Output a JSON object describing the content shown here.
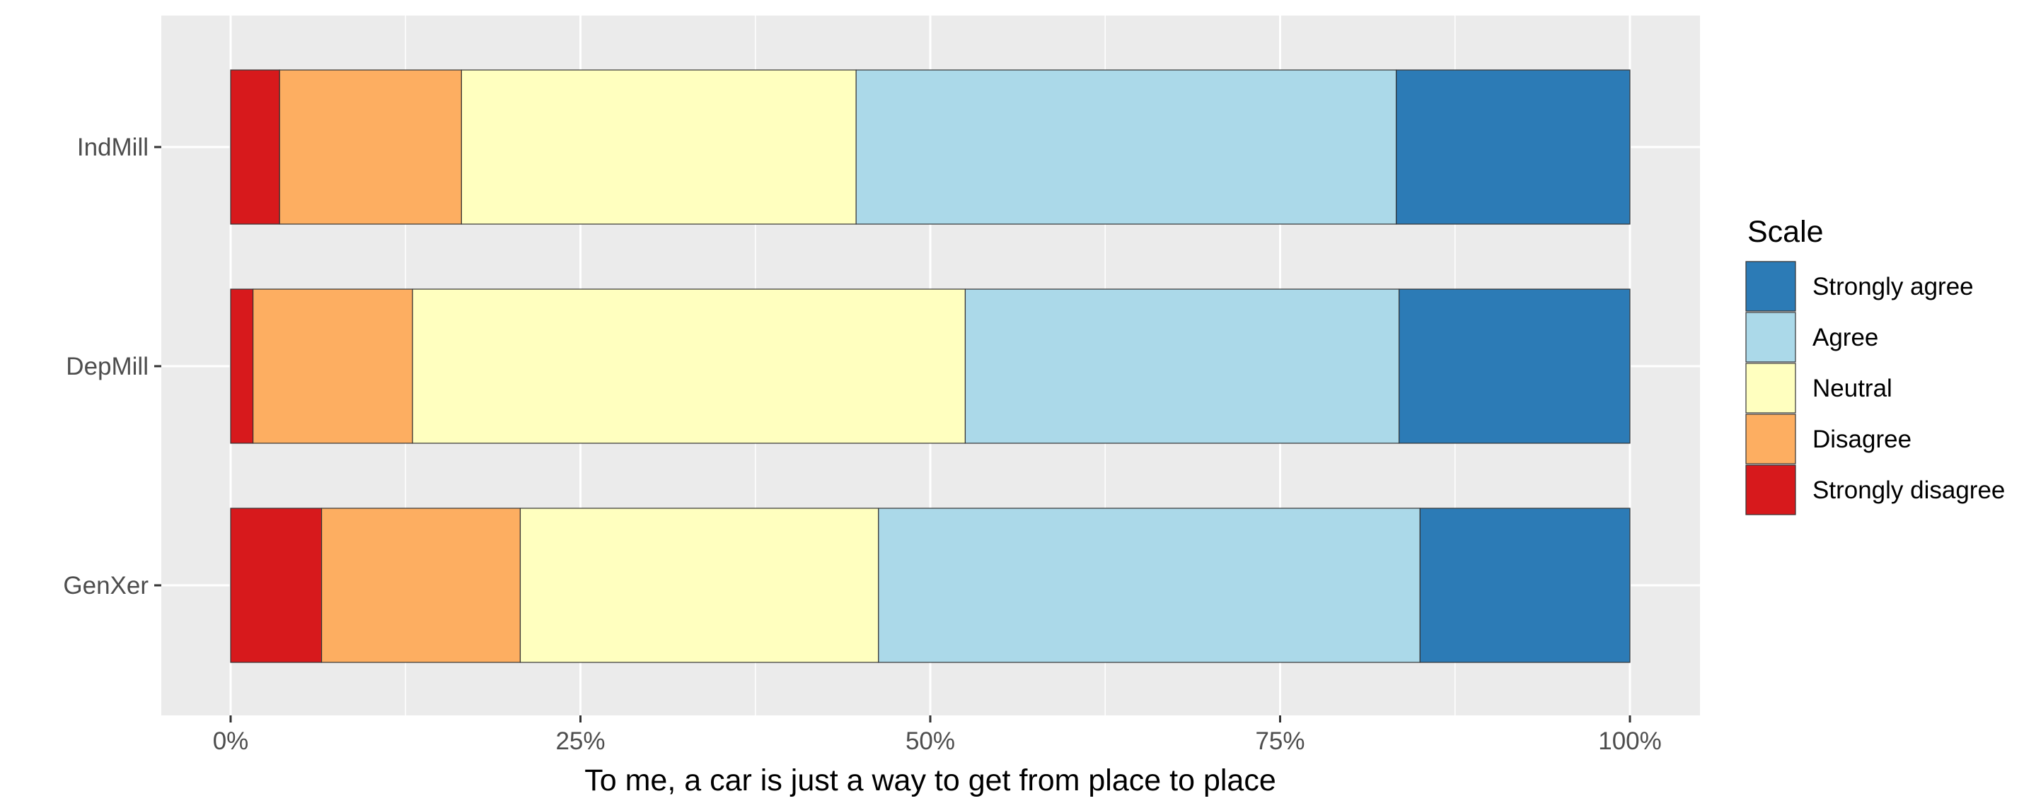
{
  "chart_data": {
    "type": "bar",
    "orientation": "horizontal",
    "stacking": "percent",
    "xlabel": "To me, a car is just a way to get from place to place",
    "ylabel": "",
    "xlim": [
      0,
      1
    ],
    "x_ticks": [
      0,
      0.25,
      0.5,
      0.75,
      1
    ],
    "x_tick_labels": [
      "0%",
      "25%",
      "50%",
      "75%",
      "100%"
    ],
    "grid": true,
    "background_color": "#ebebeb",
    "grid_color": "#ffffff",
    "categories": [
      "IndMill",
      "DepMill",
      "GenXer"
    ],
    "series": [
      {
        "name": "Strongly disagree",
        "color": "#d7191c",
        "values": [
          0.035,
          0.016,
          0.065
        ]
      },
      {
        "name": "Disagree",
        "color": "#fdae61",
        "values": [
          0.13,
          0.114,
          0.142
        ]
      },
      {
        "name": "Neutral",
        "color": "#ffffbf",
        "values": [
          0.282,
          0.395,
          0.256
        ]
      },
      {
        "name": "Agree",
        "color": "#abd9e9",
        "values": [
          0.386,
          0.31,
          0.387
        ]
      },
      {
        "name": "Strongly agree",
        "color": "#2c7bb6",
        "values": [
          0.167,
          0.165,
          0.15
        ]
      }
    ],
    "legend": {
      "title": "Scale",
      "placement": "right",
      "order": [
        "Strongly agree",
        "Agree",
        "Neutral",
        "Disagree",
        "Strongly disagree"
      ]
    }
  }
}
